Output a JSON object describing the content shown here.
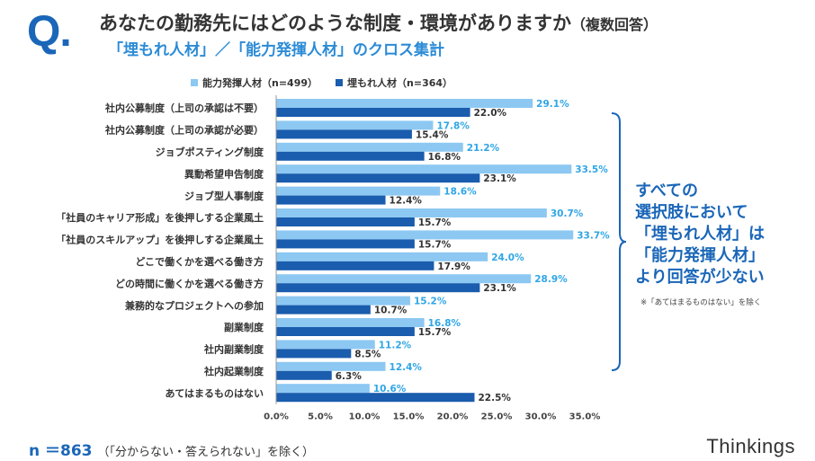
{
  "header": {
    "q_mark": "Q.",
    "title": "あなたの勤務先にはどのような制度・環境がありますか",
    "title_note": "（複数回答）",
    "subtitle": "「埋もれ人材」／「能力発揮人材」のクロス集計"
  },
  "callout": {
    "text": "すべての\n選択肢において\n「埋もれ人材」は\n「能力発揮人材」\nより回答が少ない",
    "note": "※「あてはまるものはない」を除く"
  },
  "footer": {
    "n_label": "n ＝863",
    "n_note": "（「分からない・答えられない」を除く）",
    "brand": "Thinkings"
  },
  "chart_data": {
    "type": "bar",
    "orientation": "horizontal",
    "categories": [
      "社内公募制度（上司の承認は不要）",
      "社内公募制度（上司の承認が必要）",
      "ジョブポスティング制度",
      "異動希望申告制度",
      "ジョブ型人事制度",
      "「社員のキャリア形成」を後押しする企業風土",
      "「社員のスキルアップ」を後押しする企業風土",
      "どこで働くかを選べる働き方",
      "どの時間に働くかを選べる働き方",
      "兼務的なプロジェクトへの参加",
      "副業制度",
      "社内副業制度",
      "社内起業制度",
      "あてはまるものはない"
    ],
    "series": [
      {
        "name": "能力発揮人材（n=499）",
        "color": "#8cc8f2",
        "label_color": "#2fa6e6",
        "values": [
          29.1,
          17.8,
          21.2,
          33.5,
          18.6,
          30.7,
          33.7,
          24.0,
          28.9,
          15.2,
          16.8,
          11.2,
          12.4,
          10.6
        ]
      },
      {
        "name": "埋もれ人材（n=364）",
        "color": "#1a5cad",
        "label_color": "#333333",
        "values": [
          22.0,
          15.4,
          16.8,
          23.1,
          12.4,
          15.7,
          15.7,
          17.9,
          23.1,
          10.7,
          15.7,
          8.5,
          6.3,
          22.5
        ]
      }
    ],
    "xlim": [
      0,
      35
    ],
    "x_ticks": [
      "0.0%",
      "5.0%",
      "10.0%",
      "15.0%",
      "20.0%",
      "25.0%",
      "30.0%",
      "35.0%"
    ],
    "value_format": "percent_1dp",
    "legend_position": "top"
  }
}
